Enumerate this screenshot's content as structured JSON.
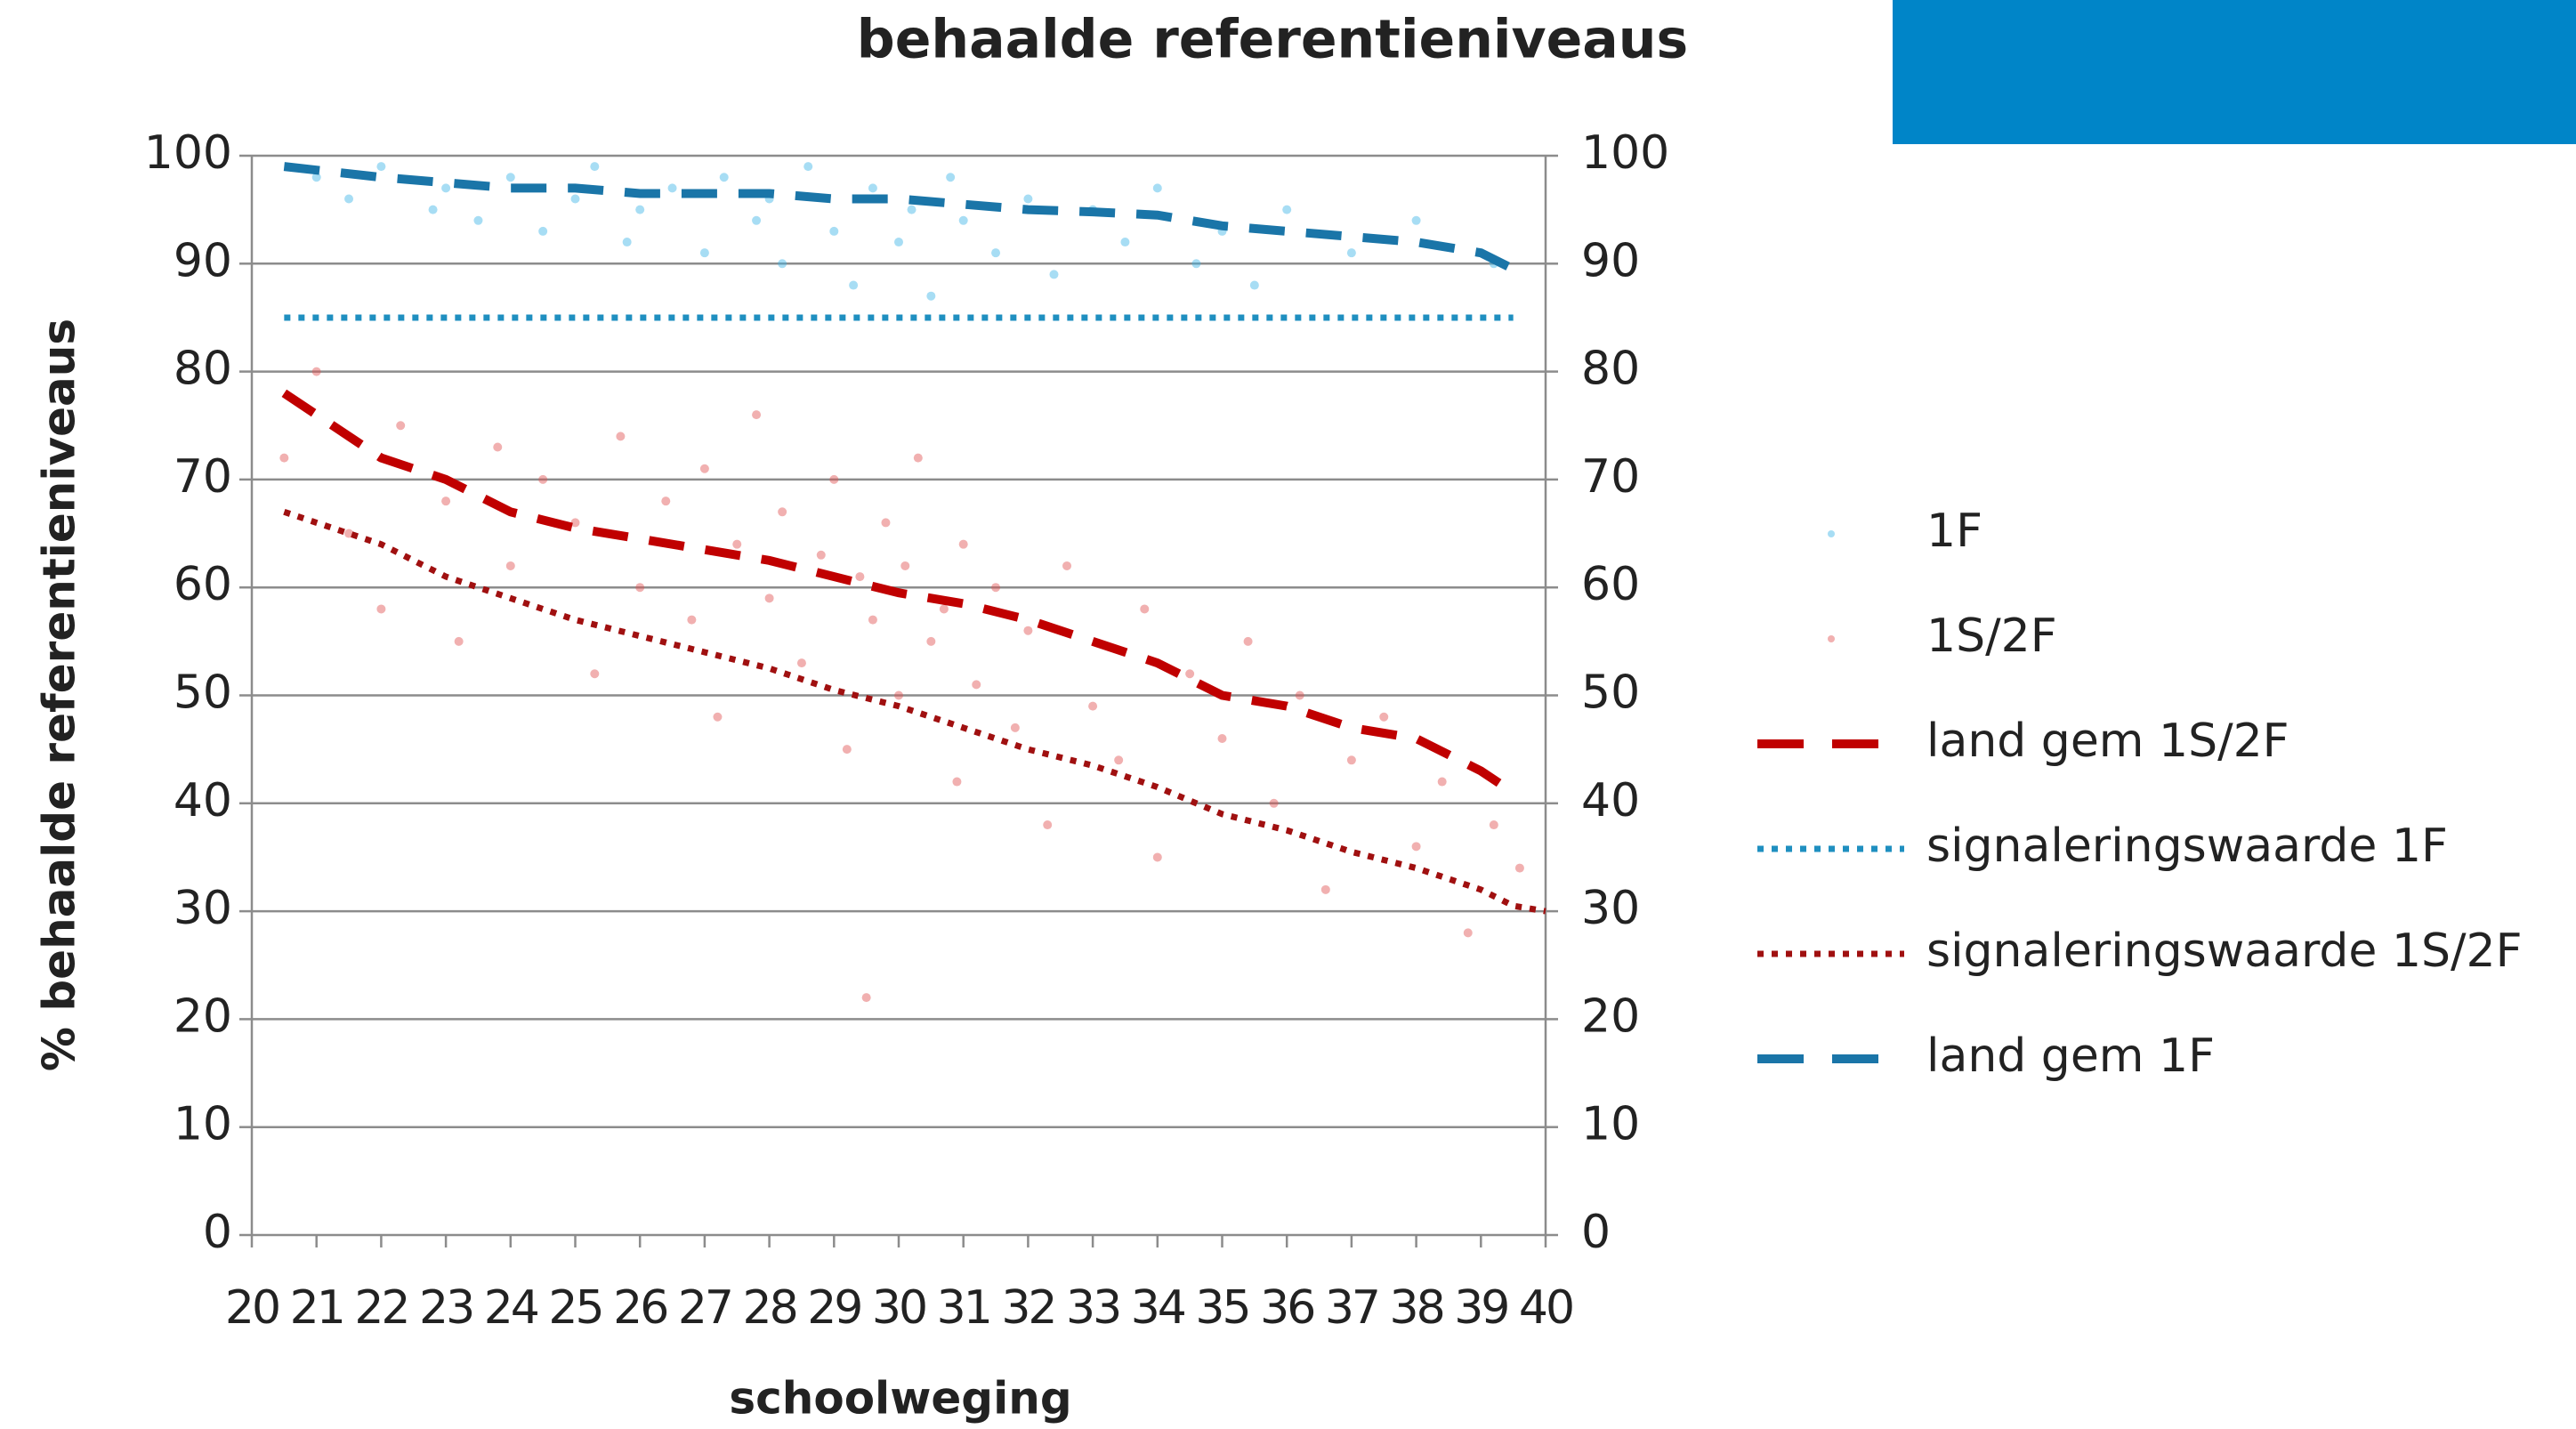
{
  "chart_data": {
    "type": "scatter",
    "title": "behaalde referentieniveaus",
    "x_label": "schoolweging",
    "y_label": "% behaalde referentieniveaus",
    "xlim": [
      20,
      40
    ],
    "xticks": [
      20,
      21,
      22,
      23,
      24,
      25,
      26,
      27,
      28,
      29,
      30,
      31,
      32,
      33,
      34,
      35,
      36,
      37,
      38,
      39,
      40
    ],
    "ylim": [
      0,
      100
    ],
    "yticks": [
      0,
      10,
      20,
      30,
      40,
      50,
      60,
      70,
      80,
      90,
      100
    ],
    "y2lim": [
      0,
      100
    ],
    "y2ticks": [
      0,
      10,
      20,
      30,
      40,
      50,
      60,
      70,
      80,
      90,
      100
    ],
    "grid": true,
    "legend": "right",
    "series": [
      {
        "name": "1F",
        "type": "scatter",
        "color": "#3cb4e6",
        "x": [
          21,
          21.5,
          22,
          22.8,
          23,
          23.5,
          24,
          24.5,
          25,
          25.3,
          25.8,
          26,
          26.5,
          27,
          27.3,
          27.8,
          28,
          28.2,
          28.6,
          29,
          29.3,
          29.6,
          30,
          30.2,
          30.5,
          30.8,
          31,
          31.5,
          32,
          32.4,
          33,
          33.5,
          34,
          34.6,
          35,
          35.5,
          36,
          37,
          38,
          39.2
        ],
        "values": [
          98,
          96,
          99,
          95,
          97,
          94,
          98,
          93,
          96,
          99,
          92,
          95,
          97,
          91,
          98,
          94,
          96,
          90,
          99,
          93,
          88,
          97,
          92,
          95,
          87,
          98,
          94,
          91,
          96,
          89,
          95,
          92,
          97,
          90,
          93,
          88,
          95,
          91,
          94,
          90
        ]
      },
      {
        "name": "1S/2F",
        "type": "scatter",
        "color": "#e05050",
        "x": [
          20.5,
          21,
          21.5,
          22,
          22.3,
          23,
          23.2,
          23.8,
          24,
          24.5,
          25,
          25.3,
          25.7,
          26,
          26.4,
          26.8,
          27,
          27.2,
          27.5,
          27.8,
          28,
          28.2,
          28.5,
          28.8,
          29,
          29.2,
          29.4,
          29.6,
          29.8,
          30,
          30.1,
          30.3,
          30.5,
          30.7,
          30.9,
          31,
          31.2,
          31.5,
          31.8,
          32,
          32.3,
          32.6,
          33,
          33.4,
          33.8,
          34,
          34.5,
          35,
          35.4,
          35.8,
          36.2,
          36.6,
          37,
          37.5,
          38,
          38.4,
          38.8,
          39.2,
          39.6,
          29.5
        ],
        "values": [
          72,
          80,
          65,
          58,
          75,
          68,
          55,
          73,
          62,
          70,
          66,
          52,
          74,
          60,
          68,
          57,
          71,
          48,
          64,
          76,
          59,
          67,
          53,
          63,
          70,
          45,
          61,
          57,
          66,
          50,
          62,
          72,
          55,
          58,
          42,
          64,
          51,
          60,
          47,
          56,
          38,
          62,
          49,
          44,
          58,
          35,
          52,
          46,
          55,
          40,
          50,
          32,
          44,
          48,
          36,
          42,
          28,
          38,
          34,
          22
        ]
      },
      {
        "name": "land gem 1S/2F",
        "type": "line",
        "line_style": "dashed",
        "color": "#c00000",
        "x": [
          20.5,
          22,
          23,
          24,
          25,
          26,
          27,
          28,
          29,
          30,
          31,
          32,
          33,
          34,
          35,
          36,
          37,
          38,
          39,
          39.5
        ],
        "values": [
          78,
          72,
          70,
          67,
          65.5,
          64.5,
          63.5,
          62.5,
          61,
          59.5,
          58.5,
          57,
          55,
          53,
          50,
          49,
          47,
          46,
          43,
          41
        ]
      },
      {
        "name": "signaleringswaarde 1F",
        "type": "line",
        "line_style": "dotted",
        "color": "#1f8fc0",
        "x": [
          20.5,
          39.5
        ],
        "values": [
          85,
          85
        ]
      },
      {
        "name": "signaleringswaarde 1S/2F",
        "type": "line",
        "line_style": "dotted",
        "color": "#a01010",
        "x": [
          20.5,
          22,
          23,
          24,
          25,
          26,
          27,
          28,
          29,
          30,
          31,
          32,
          33,
          34,
          35,
          36,
          37,
          38,
          39,
          39.5,
          40
        ],
        "values": [
          67,
          64,
          61,
          59,
          57,
          55.5,
          54,
          52.5,
          50.5,
          49,
          47,
          45,
          43.5,
          41.5,
          39,
          37.5,
          35.5,
          34,
          32,
          30.5,
          30
        ]
      },
      {
        "name": "land gem 1F",
        "type": "line",
        "line_style": "dashed",
        "color": "#1a75a8",
        "x": [
          20.5,
          22,
          23,
          24,
          25,
          26,
          27,
          28,
          29,
          30,
          31,
          32,
          33,
          34,
          35,
          36,
          37,
          38,
          39,
          39.5
        ],
        "values": [
          99,
          98,
          97.5,
          97,
          97,
          96.5,
          96.5,
          96.5,
          96,
          96,
          95.5,
          95,
          94.8,
          94.5,
          93.5,
          93,
          92.5,
          92,
          91,
          89.5
        ]
      }
    ]
  }
}
